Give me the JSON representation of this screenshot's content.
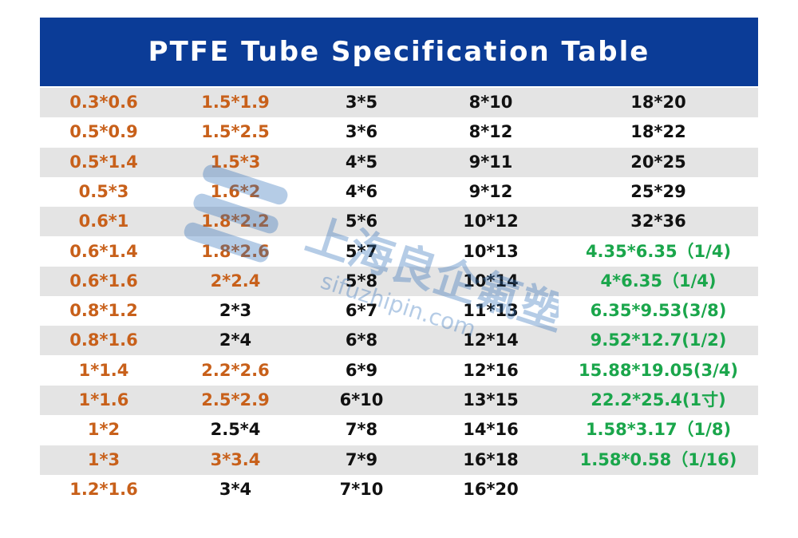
{
  "header": {
    "title": "PTFE Tube Specification Table"
  },
  "watermark": {
    "name": "上海良企氟塑",
    "url": "sifuzhipin.com"
  },
  "palette": {
    "orange": "#c8601a",
    "black": "#111111",
    "green": "#1aa64b"
  },
  "table": {
    "rows": [
      [
        {
          "text": "0.3*0.6",
          "color": "orange"
        },
        {
          "text": "1.5*1.9",
          "color": "orange"
        },
        {
          "text": "3*5",
          "color": "black"
        },
        {
          "text": "8*10",
          "color": "black"
        },
        {
          "text": "18*20",
          "color": "black"
        }
      ],
      [
        {
          "text": "0.5*0.9",
          "color": "orange"
        },
        {
          "text": "1.5*2.5",
          "color": "orange"
        },
        {
          "text": "3*6",
          "color": "black"
        },
        {
          "text": "8*12",
          "color": "black"
        },
        {
          "text": "18*22",
          "color": "black"
        }
      ],
      [
        {
          "text": "0.5*1.4",
          "color": "orange"
        },
        {
          "text": "1.5*3",
          "color": "orange"
        },
        {
          "text": "4*5",
          "color": "black"
        },
        {
          "text": "9*11",
          "color": "black"
        },
        {
          "text": "20*25",
          "color": "black"
        }
      ],
      [
        {
          "text": "0.5*3",
          "color": "orange"
        },
        {
          "text": "1.6*2",
          "color": "orange"
        },
        {
          "text": "4*6",
          "color": "black"
        },
        {
          "text": "9*12",
          "color": "black"
        },
        {
          "text": "25*29",
          "color": "black"
        }
      ],
      [
        {
          "text": "0.6*1",
          "color": "orange"
        },
        {
          "text": "1.8*2.2",
          "color": "orange"
        },
        {
          "text": "5*6",
          "color": "black"
        },
        {
          "text": "10*12",
          "color": "black"
        },
        {
          "text": "32*36",
          "color": "black"
        }
      ],
      [
        {
          "text": "0.6*1.4",
          "color": "orange"
        },
        {
          "text": "1.8*2.6",
          "color": "orange"
        },
        {
          "text": "5*7",
          "color": "black"
        },
        {
          "text": "10*13",
          "color": "black"
        },
        {
          "text": "4.35*6.35（1/4)",
          "color": "green"
        }
      ],
      [
        {
          "text": "0.6*1.6",
          "color": "orange"
        },
        {
          "text": "2*2.4",
          "color": "orange"
        },
        {
          "text": "5*8",
          "color": "black"
        },
        {
          "text": "10*14",
          "color": "black"
        },
        {
          "text": "4*6.35（1/4)",
          "color": "green"
        }
      ],
      [
        {
          "text": "0.8*1.2",
          "color": "orange"
        },
        {
          "text": "2*3",
          "color": "black"
        },
        {
          "text": "6*7",
          "color": "black"
        },
        {
          "text": "11*13",
          "color": "black"
        },
        {
          "text": "6.35*9.53(3/8)",
          "color": "green"
        }
      ],
      [
        {
          "text": "0.8*1.6",
          "color": "orange"
        },
        {
          "text": "2*4",
          "color": "black"
        },
        {
          "text": "6*8",
          "color": "black"
        },
        {
          "text": "12*14",
          "color": "black"
        },
        {
          "text": "9.52*12.7(1/2)",
          "color": "green"
        }
      ],
      [
        {
          "text": "1*1.4",
          "color": "orange"
        },
        {
          "text": "2.2*2.6",
          "color": "orange"
        },
        {
          "text": "6*9",
          "color": "black"
        },
        {
          "text": "12*16",
          "color": "black"
        },
        {
          "text": "15.88*19.05(3/4)",
          "color": "green"
        }
      ],
      [
        {
          "text": "1*1.6",
          "color": "orange"
        },
        {
          "text": "2.5*2.9",
          "color": "orange"
        },
        {
          "text": "6*10",
          "color": "black"
        },
        {
          "text": "13*15",
          "color": "black"
        },
        {
          "text": "22.2*25.4(1寸)",
          "color": "green"
        }
      ],
      [
        {
          "text": "1*2",
          "color": "orange"
        },
        {
          "text": "2.5*4",
          "color": "black"
        },
        {
          "text": "7*8",
          "color": "black"
        },
        {
          "text": "14*16",
          "color": "black"
        },
        {
          "text": "1.58*3.17（1/8)",
          "color": "green"
        }
      ],
      [
        {
          "text": "1*3",
          "color": "orange"
        },
        {
          "text": "3*3.4",
          "color": "orange"
        },
        {
          "text": "7*9",
          "color": "black"
        },
        {
          "text": "16*18",
          "color": "black"
        },
        {
          "text": "1.58*0.58（1/16)",
          "color": "green"
        }
      ],
      [
        {
          "text": "1.2*1.6",
          "color": "orange"
        },
        {
          "text": "3*4",
          "color": "black"
        },
        {
          "text": "7*10",
          "color": "black"
        },
        {
          "text": "16*20",
          "color": "black"
        }
      ]
    ]
  }
}
